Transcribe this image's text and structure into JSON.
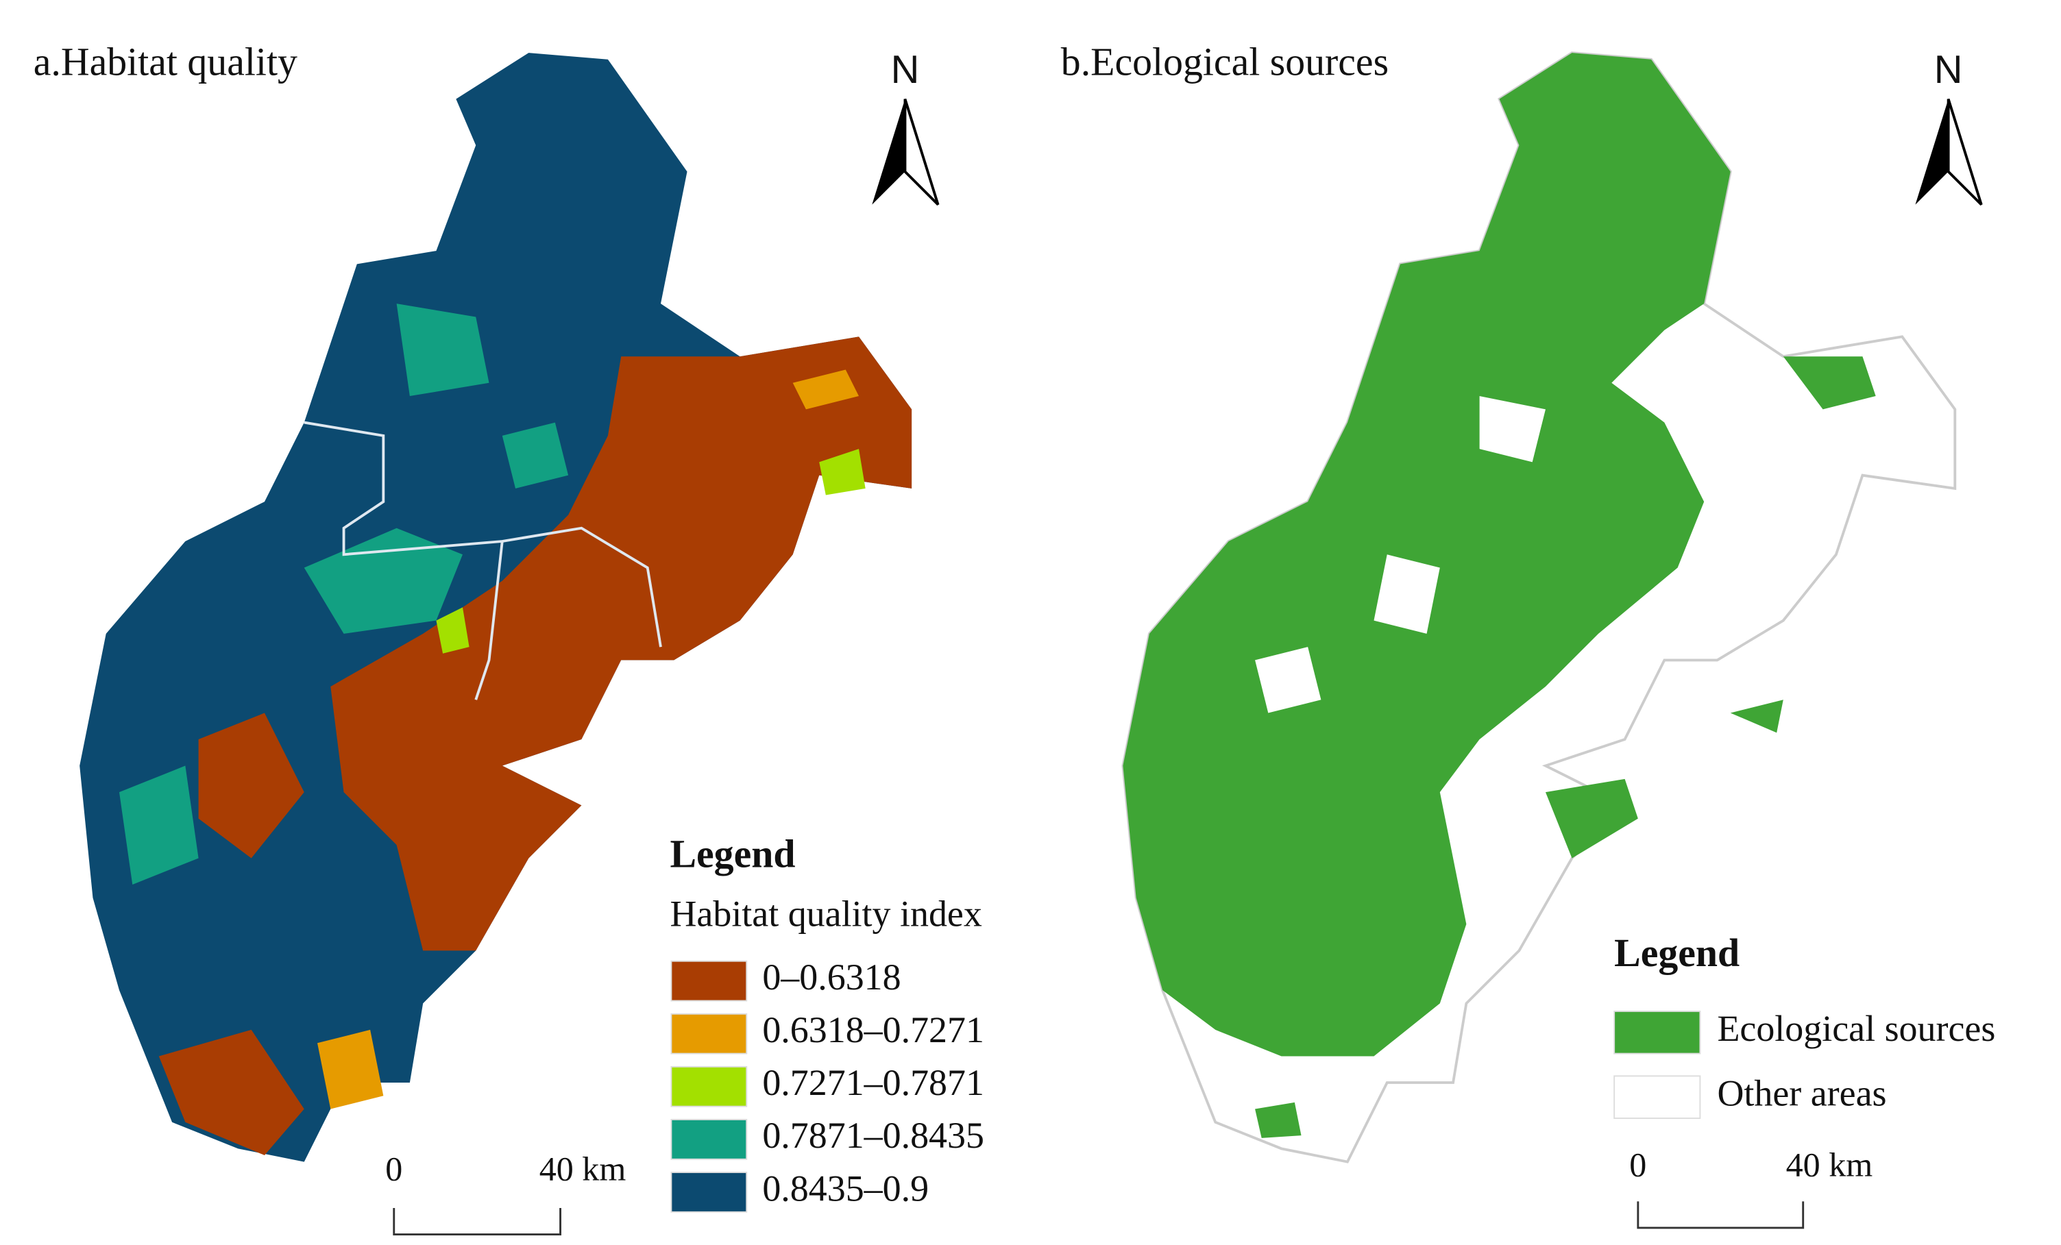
{
  "panels": [
    {
      "title": "a.Habitat quality",
      "north": "N",
      "legend": {
        "title": "Legend",
        "subtitle": "Habitat quality index",
        "items": [
          {
            "label": "0–0.6318",
            "color": "#a93d03"
          },
          {
            "label": "0.6318–0.7271",
            "color": "#e69b00"
          },
          {
            "label": "0.7271–0.7871",
            "color": "#a3e000"
          },
          {
            "label": "0.7871–0.8435",
            "color": "#12a082"
          },
          {
            "label": "0.8435–0.9",
            "color": "#0c4a70"
          }
        ]
      },
      "scale_bar": {
        "start": "0",
        "end": "40 km"
      }
    },
    {
      "title": "b.Ecological sources",
      "north": "N",
      "legend": {
        "title": "Legend",
        "items": [
          {
            "label": "Ecological sources",
            "color": "#3fa535"
          },
          {
            "label": "Other areas",
            "color": "#ffffff"
          }
        ]
      },
      "scale_bar": {
        "start": "0",
        "end": "40 km"
      }
    }
  ]
}
